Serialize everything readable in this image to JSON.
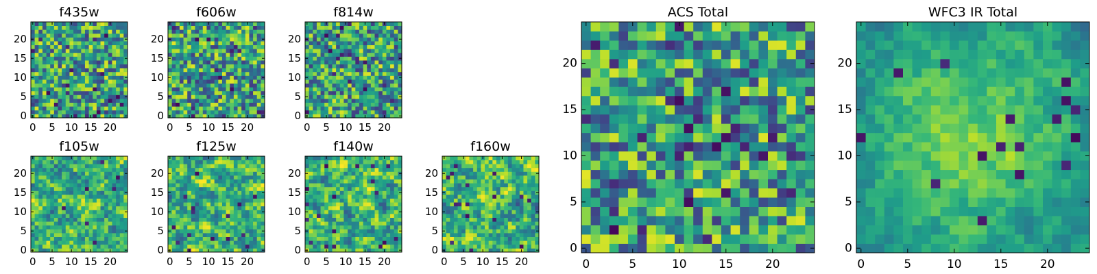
{
  "chart_data": [
    {
      "type": "heatmap",
      "title": "f435w",
      "xticks": [
        "0",
        "5",
        "10",
        "15",
        "20"
      ],
      "yticks": [
        "0",
        "5",
        "10",
        "15",
        "20"
      ],
      "xlim": [
        -0.5,
        24.5
      ],
      "ylim": [
        -0.5,
        24.5
      ],
      "grid_size": 25,
      "colormap": "viridis",
      "texture": "noisy"
    },
    {
      "type": "heatmap",
      "title": "f606w",
      "xticks": [
        "0",
        "5",
        "10",
        "15",
        "20"
      ],
      "yticks": [
        "0",
        "5",
        "10",
        "15",
        "20"
      ],
      "xlim": [
        -0.5,
        24.5
      ],
      "ylim": [
        -0.5,
        24.5
      ],
      "grid_size": 25,
      "colormap": "viridis",
      "texture": "noisy"
    },
    {
      "type": "heatmap",
      "title": "f814w",
      "xticks": [
        "0",
        "5",
        "10",
        "15",
        "20"
      ],
      "yticks": [
        "0",
        "5",
        "10",
        "15",
        "20"
      ],
      "xlim": [
        -0.5,
        24.5
      ],
      "ylim": [
        -0.5,
        24.5
      ],
      "grid_size": 25,
      "colormap": "viridis",
      "texture": "noisy"
    },
    {
      "type": "heatmap",
      "title": "f105w",
      "xticks": [
        "0",
        "5",
        "10",
        "15",
        "20"
      ],
      "yticks": [
        "0",
        "5",
        "10",
        "15",
        "20"
      ],
      "xlim": [
        -0.5,
        24.5
      ],
      "ylim": [
        -0.5,
        24.5
      ],
      "grid_size": 25,
      "colormap": "viridis",
      "texture": "smooth"
    },
    {
      "type": "heatmap",
      "title": "f125w",
      "xticks": [
        "0",
        "5",
        "10",
        "15",
        "20"
      ],
      "yticks": [
        "0",
        "5",
        "10",
        "15",
        "20"
      ],
      "xlim": [
        -0.5,
        24.5
      ],
      "ylim": [
        -0.5,
        24.5
      ],
      "grid_size": 25,
      "colormap": "viridis",
      "texture": "smooth"
    },
    {
      "type": "heatmap",
      "title": "f140w",
      "xticks": [
        "0",
        "5",
        "10",
        "15",
        "20"
      ],
      "yticks": [
        "0",
        "5",
        "10",
        "15",
        "20"
      ],
      "xlim": [
        -0.5,
        24.5
      ],
      "ylim": [
        -0.5,
        24.5
      ],
      "grid_size": 25,
      "colormap": "viridis",
      "texture": "smooth"
    },
    {
      "type": "heatmap",
      "title": "f160w",
      "xticks": [
        "0",
        "5",
        "10",
        "15",
        "20"
      ],
      "yticks": [
        "0",
        "5",
        "10",
        "15",
        "20"
      ],
      "xlim": [
        -0.5,
        24.5
      ],
      "ylim": [
        -0.5,
        24.5
      ],
      "grid_size": 25,
      "colormap": "viridis",
      "texture": "smooth"
    },
    {
      "type": "heatmap",
      "title": "ACS Total",
      "xticks": [
        "0",
        "5",
        "10",
        "15",
        "20"
      ],
      "yticks": [
        "0",
        "5",
        "10",
        "15",
        "20"
      ],
      "xlim": [
        -0.5,
        24.5
      ],
      "ylim": [
        -0.5,
        24.5
      ],
      "grid_size": 25,
      "colormap": "viridis",
      "texture": "noisy"
    },
    {
      "type": "heatmap",
      "title": "WFC3 IR Total",
      "xticks": [
        "0",
        "5",
        "10",
        "15",
        "20"
      ],
      "yticks": [
        "0",
        "5",
        "10",
        "15",
        "20"
      ],
      "xlim": [
        -0.5,
        24.5
      ],
      "ylim": [
        -0.5,
        24.5
      ],
      "grid_size": 25,
      "colormap": "viridis",
      "texture": "smooth-center"
    }
  ]
}
